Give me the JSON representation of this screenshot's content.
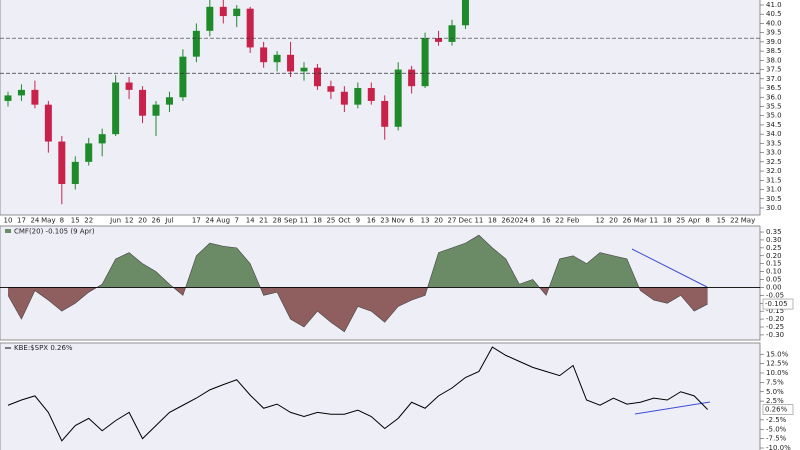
{
  "chart_data": [
    {
      "type": "candlestick",
      "categories": [
        "10",
        "17",
        "24",
        "May",
        "8",
        "15",
        "22",
        null,
        "Jun",
        "12",
        "20",
        "26",
        "Jul",
        null,
        "17",
        "24",
        "Aug",
        "7",
        "14",
        "21",
        "28",
        "Sep",
        "11",
        "18",
        "25",
        "Oct",
        "9",
        "16",
        "23",
        "Nov",
        "6",
        "13",
        "20",
        "27",
        "Dec",
        "11",
        "18",
        "26",
        "2024",
        "8",
        "16",
        "22",
        "Feb",
        null,
        "12",
        "20",
        "26",
        "Mar",
        "11",
        "18",
        "25",
        "Apr",
        "8",
        "15",
        "22",
        "May"
      ],
      "open": [
        35.8,
        36.1,
        36.4,
        35.6,
        33.6,
        31.3,
        32.5,
        33.5,
        34.0,
        36.8,
        36.4,
        35.0,
        35.6,
        36.0,
        38.2,
        39.6,
        40.9,
        40.4,
        40.8,
        38.7,
        37.9,
        38.3,
        37.4,
        37.6,
        36.6,
        36.3,
        35.6,
        36.5,
        35.8,
        34.4,
        37.5,
        36.6,
        39.2,
        39.0,
        39.9,
        null,
        null,
        null,
        null,
        null,
        null,
        null,
        null,
        null,
        null,
        null,
        null,
        null,
        null,
        null,
        null,
        null,
        null,
        null,
        null,
        null
      ],
      "high": [
        36.3,
        36.7,
        36.9,
        35.8,
        33.9,
        32.8,
        33.8,
        34.3,
        37.2,
        37.1,
        36.6,
        35.8,
        36.3,
        38.6,
        40.0,
        41.4,
        41.3,
        41.0,
        40.9,
        39.0,
        38.5,
        39.0,
        37.9,
        37.8,
        36.9,
        36.6,
        36.8,
        36.8,
        36.1,
        37.9,
        37.7,
        39.5,
        39.6,
        40.2,
        41.5,
        null,
        null,
        null,
        null,
        null,
        null,
        null,
        null,
        null,
        null,
        null,
        null,
        null,
        null,
        null,
        null,
        null,
        null,
        null,
        null,
        null
      ],
      "low": [
        35.5,
        35.8,
        35.4,
        33.0,
        30.2,
        31.0,
        32.3,
        32.8,
        33.9,
        35.9,
        34.6,
        33.9,
        35.2,
        35.8,
        37.9,
        39.3,
        40.0,
        39.8,
        38.4,
        37.6,
        37.4,
        37.1,
        36.9,
        36.4,
        35.9,
        35.2,
        35.4,
        35.6,
        33.7,
        34.2,
        36.2,
        36.5,
        38.8,
        38.8,
        39.7,
        null,
        null,
        null,
        null,
        null,
        null,
        null,
        null,
        null,
        null,
        null,
        null,
        null,
        null,
        null,
        null,
        null,
        null,
        null,
        null,
        null
      ],
      "close": [
        36.1,
        36.4,
        35.6,
        33.6,
        31.3,
        32.5,
        33.5,
        34.0,
        36.8,
        36.4,
        35.0,
        35.6,
        36.0,
        38.2,
        39.6,
        40.9,
        40.4,
        40.8,
        38.7,
        37.9,
        38.3,
        37.4,
        37.6,
        36.6,
        36.3,
        35.6,
        36.5,
        35.8,
        34.4,
        37.5,
        36.6,
        39.2,
        39.0,
        39.9,
        41.3,
        null,
        null,
        null,
        null,
        null,
        null,
        null,
        null,
        null,
        null,
        null,
        null,
        null,
        null,
        null,
        null,
        null,
        null,
        null,
        null,
        null
      ],
      "up_color": "#1f8a2a",
      "down_color": "#c8224a",
      "hlines": [
        39.2,
        37.3
      ],
      "ylim": [
        29.62,
        41.27
      ],
      "yticks": [
        {
          "value": 41,
          "label": "41.0"
        },
        40.5,
        {
          "value": 40,
          "label": "40.0"
        },
        39.5,
        {
          "value": 39,
          "label": "39.0"
        },
        38.5,
        {
          "value": 38,
          "label": "38.0"
        },
        37.5,
        {
          "value": 37,
          "label": "37.0"
        },
        36.5,
        {
          "value": 36,
          "label": "36.0"
        },
        35.5,
        {
          "value": 35,
          "label": "35.0"
        },
        34.5,
        {
          "value": 34,
          "label": "34.0"
        },
        33.5,
        {
          "value": 33,
          "label": "33.0"
        },
        32.5,
        {
          "value": 32,
          "label": "32.0"
        },
        31.5,
        {
          "value": 31,
          "label": "31.0"
        },
        30.5,
        {
          "value": 30,
          "label": "30.0"
        }
      ]
    },
    {
      "type": "area",
      "title": "CMF(20) -0.105 (9 Apr)",
      "values": [
        -0.05,
        -0.2,
        -0.02,
        -0.08,
        -0.15,
        -0.1,
        -0.03,
        0.02,
        0.18,
        0.22,
        0.15,
        0.1,
        0.02,
        -0.05,
        0.2,
        0.28,
        0.26,
        0.25,
        0.15,
        -0.05,
        -0.03,
        -0.2,
        -0.25,
        -0.15,
        -0.22,
        -0.28,
        -0.12,
        -0.15,
        -0.22,
        -0.12,
        -0.08,
        -0.05,
        0.22,
        0.25,
        0.28,
        0.33,
        0.25,
        0.18,
        0.02,
        0.05,
        -0.05,
        0.18,
        0.2,
        0.15,
        0.22,
        0.2,
        0.18,
        -0.02,
        -0.08,
        -0.1,
        -0.05,
        -0.15,
        -0.105,
        null,
        null,
        null
      ],
      "pos_color": "#6b8a66",
      "neg_color": "#8f5f5f",
      "current": -0.105,
      "ylim": [
        -0.332,
        0.388
      ],
      "yticks": [
        0.35,
        {
          "value": 0.3,
          "label": "0.30"
        },
        0.25,
        {
          "value": 0.2,
          "label": "0.20"
        },
        0.15,
        {
          "value": 0.1,
          "label": "0.10"
        },
        0.05,
        {
          "value": 0,
          "label": "0.00"
        },
        -0.05,
        {
          "value": -0.1,
          "label": "-0.10"
        },
        -0.15,
        {
          "value": -0.2,
          "label": "-0.20"
        },
        -0.25,
        {
          "value": -0.3,
          "label": "-0.30"
        }
      ]
    },
    {
      "type": "line",
      "title": "KBE:$SPX 0.26%",
      "values": [
        1.4,
        2.8,
        3.9,
        -0.5,
        -8.1,
        -4.0,
        -2.1,
        -5.4,
        -2.7,
        -0.5,
        -7.5,
        -4.0,
        -0.5,
        1.4,
        3.3,
        5.5,
        6.9,
        8.2,
        4.1,
        0.6,
        1.7,
        -0.5,
        -1.6,
        -0.5,
        -1.0,
        -1.0,
        0.1,
        -1.6,
        -4.8,
        -2.1,
        2.2,
        0.6,
        3.9,
        6.0,
        8.8,
        10.4,
        16.9,
        14.7,
        13.1,
        11.5,
        10.4,
        9.3,
        12.0,
        2.8,
        1.4,
        3.3,
        1.7,
        2.2,
        3.3,
        2.8,
        5.0,
        3.9,
        0.26,
        null,
        null,
        null
      ],
      "color": "#000000",
      "current": {
        "value": 0.26,
        "label": "0.26%"
      },
      "ylim": [
        -10.8,
        18
      ],
      "yticks": [
        {
          "value": 15,
          "label": "15.0%"
        },
        {
          "value": 12.5,
          "label": "12.5%"
        },
        {
          "value": 10,
          "label": "10.0%"
        },
        {
          "value": 7.5,
          "label": "7.5%"
        },
        {
          "value": 5,
          "label": "5.0%"
        },
        {
          "value": 2.5,
          "label": "2.5%"
        },
        {
          "value": -2.5,
          "label": "-2.5%"
        },
        {
          "value": -5,
          "label": "-5.0%"
        },
        {
          "value": -7.5,
          "label": "-7.5%"
        },
        {
          "value": -10,
          "label": "-10.0%"
        }
      ]
    }
  ]
}
